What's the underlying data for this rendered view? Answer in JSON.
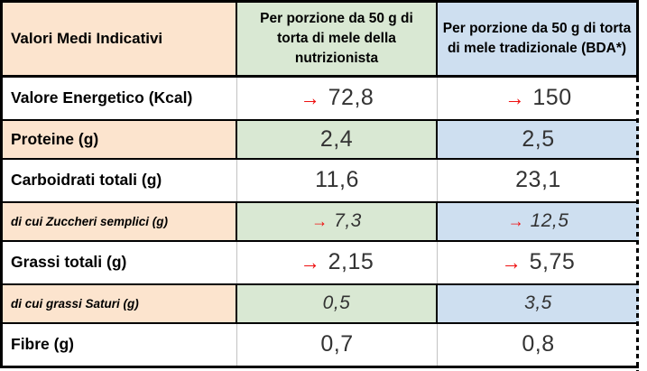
{
  "table": {
    "header": {
      "col1": "Valori Medi Indicativi",
      "col2": "Per porzione da 50 g di torta di mele della nutrizionista",
      "col3": "Per porzione da 50 g di torta di mele tradizionale (BDA*)"
    },
    "rows": [
      {
        "label": "Valore Energetico (Kcal)",
        "v1": "72,8",
        "v2": "150",
        "arrows": true,
        "highlight": false,
        "italic": false
      },
      {
        "label": "Proteine (g)",
        "v1": "2,4",
        "v2": "2,5",
        "arrows": false,
        "highlight": true,
        "italic": false
      },
      {
        "label": "Carboidrati totali (g)",
        "v1": "11,6",
        "v2": "23,1",
        "arrows": false,
        "highlight": false,
        "italic": false
      },
      {
        "label": "di cui Zuccheri semplici (g)",
        "v1": "7,3",
        "v2": "12,5",
        "arrows": true,
        "highlight": true,
        "italic": true
      },
      {
        "label": "Grassi totali (g)",
        "v1": "2,15",
        "v2": "5,75",
        "arrows": true,
        "highlight": false,
        "italic": false
      },
      {
        "label": "di cui grassi Saturi (g)",
        "v1": "0,5",
        "v2": "3,5",
        "arrows": false,
        "highlight": true,
        "italic": true
      },
      {
        "label": "Fibre (g)",
        "v1": "0,7",
        "v2": "0,8",
        "arrows": false,
        "highlight": false,
        "italic": false
      }
    ],
    "arrow_icon": "→",
    "colors": {
      "peach": "#FCE4CE",
      "green": "#D9E8D3",
      "blue": "#CEDFF0",
      "arrow_red": "#EE1111",
      "gray_divider": "#C3C3C3",
      "border": "#000000"
    }
  },
  "chart_data": {
    "type": "table",
    "title": "Valori Medi Indicativi",
    "columns": [
      "Valori Medi Indicativi",
      "Per porzione da 50 g di torta di mele della nutrizionista",
      "Per porzione da 50 g di torta di mele tradizionale (BDA*)"
    ],
    "rows": [
      [
        "Valore Energetico (Kcal)",
        "72,8",
        "150"
      ],
      [
        "Proteine (g)",
        "2,4",
        "2,5"
      ],
      [
        "Carboidrati totali (g)",
        "11,6",
        "23,1"
      ],
      [
        "di cui Zuccheri semplici (g)",
        "7,3",
        "12,5"
      ],
      [
        "Grassi totali (g)",
        "2,15",
        "5,75"
      ],
      [
        "di cui grassi Saturi (g)",
        "0,5",
        "3,5"
      ],
      [
        "Fibre (g)",
        "0,7",
        "0,8"
      ]
    ],
    "annotations": "Red arrows mark the values in rows: Valore Energetico (Kcal), di cui Zuccheri semplici (g), Grassi totali (g)"
  }
}
